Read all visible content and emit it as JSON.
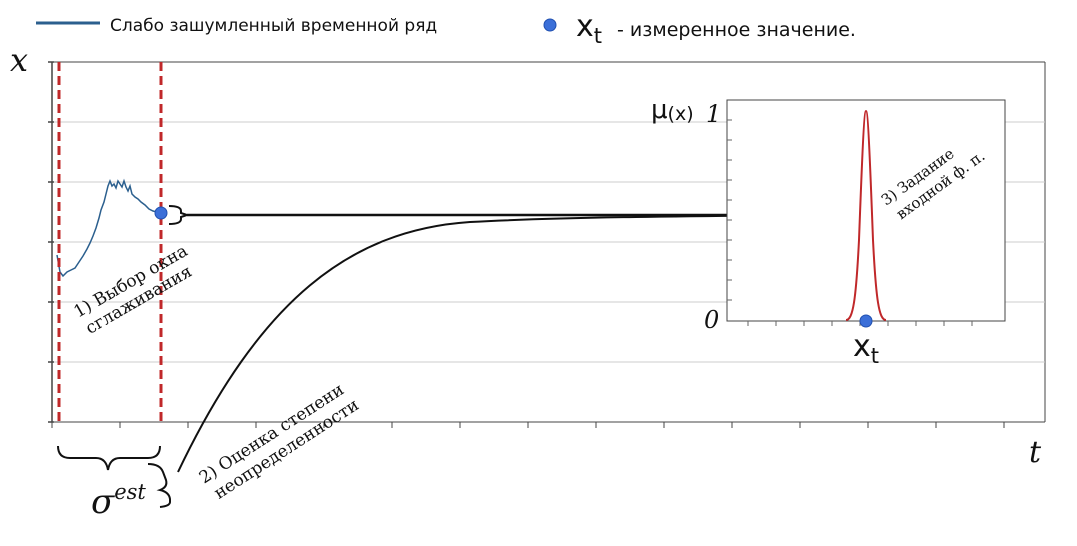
{
  "legend": {
    "line_label": "Слабо зашумленный временной ряд",
    "point_symbol_base": "x",
    "point_symbol_sub": "t",
    "point_label": " - измеренное значение."
  },
  "axes": {
    "y_label": "x",
    "x_label": "t"
  },
  "annotations": {
    "step1_line1": "1) Выбор окна",
    "step1_line2": "сглаживания",
    "step2_line1": "2) Оценка степени",
    "step2_line2": "неопределенности",
    "step3_line1": "3) Задание",
    "step3_line2": "входной ф. п.",
    "sigma_base": "σ",
    "sigma_sup": "est"
  },
  "inset": {
    "y_label_mu": "μ",
    "y_label_arg": "(x)",
    "y_tick_top": "1",
    "y_tick_bottom": "0",
    "x_label_base": "x",
    "x_label_sub": "t"
  },
  "colors": {
    "series": "#2b5f8e",
    "point": "#3b6fd8",
    "window_lines": "#c0282a",
    "membership_curve": "#c0282a",
    "grid": "#cccccc",
    "axis": "#333333"
  }
}
